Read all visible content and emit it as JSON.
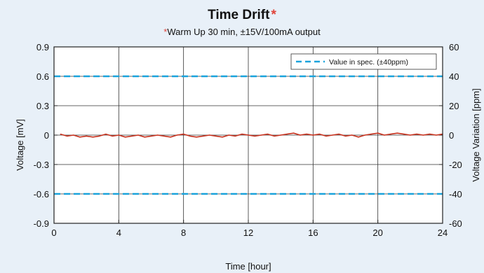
{
  "chart_data": {
    "type": "line",
    "title": "Time Drift",
    "title_mark": "*",
    "subtitle_mark": "*",
    "subtitle": "Warm Up 30 min, ±15V/100mA output",
    "xlabel": "Time [hour]",
    "ylabel": "Voltage [mV]",
    "y2label": "Voltage Variation [ppm]",
    "xlim": [
      0,
      24
    ],
    "ylim": [
      -0.9,
      0.9
    ],
    "y2lim": [
      -60,
      60
    ],
    "x_ticks": [
      "0",
      "4",
      "8",
      "12",
      "16",
      "20",
      "24"
    ],
    "y_ticks": [
      "0.9",
      "0.6",
      "0.3",
      "0",
      "-0.3",
      "-0.6",
      "-0.9"
    ],
    "y2_ticks": [
      "60",
      "40",
      "20",
      "0",
      "-20",
      "-40",
      "-60"
    ],
    "grid": true,
    "legend_position": "top-right",
    "series": [
      {
        "name": "Value in spec. (±40ppm)",
        "style": "dashed",
        "color": "#1aa3dc",
        "segments": [
          {
            "x": [
              0,
              24
            ],
            "y": [
              0.6,
              0.6
            ]
          },
          {
            "x": [
              0,
              24
            ],
            "y": [
              -0.6,
              -0.6
            ]
          }
        ]
      },
      {
        "style": "solid",
        "color": "#c8321e",
        "x": [
          0.4,
          0.8,
          1.2,
          1.6,
          2.0,
          2.4,
          2.8,
          3.2,
          3.6,
          4.0,
          4.4,
          4.8,
          5.2,
          5.6,
          6.0,
          6.4,
          6.8,
          7.2,
          7.6,
          8.0,
          8.4,
          8.8,
          9.2,
          9.6,
          10.0,
          10.4,
          10.8,
          11.2,
          11.6,
          12.0,
          12.4,
          12.8,
          13.2,
          13.6,
          14.0,
          14.4,
          14.8,
          15.2,
          15.6,
          16.0,
          16.4,
          16.8,
          17.2,
          17.6,
          18.0,
          18.4,
          18.8,
          19.2,
          19.6,
          20.0,
          20.4,
          20.8,
          21.2,
          21.6,
          22.0,
          22.4,
          22.8,
          23.2,
          23.6,
          24.0
        ],
        "y": [
          0.01,
          -0.01,
          0.0,
          -0.02,
          -0.01,
          -0.02,
          -0.01,
          0.01,
          -0.01,
          0.0,
          -0.02,
          -0.01,
          0.0,
          -0.02,
          -0.01,
          0.0,
          -0.01,
          -0.02,
          0.0,
          0.01,
          -0.01,
          -0.02,
          -0.01,
          0.0,
          -0.01,
          -0.02,
          0.0,
          -0.01,
          0.01,
          0.0,
          -0.01,
          0.0,
          0.01,
          -0.01,
          0.0,
          0.01,
          0.02,
          0.0,
          0.01,
          0.0,
          0.01,
          -0.01,
          0.0,
          0.01,
          -0.01,
          0.0,
          -0.02,
          0.0,
          0.01,
          0.02,
          0.0,
          0.01,
          0.02,
          0.01,
          0.0,
          0.01,
          0.0,
          0.01,
          0.0,
          0.01
        ]
      }
    ]
  }
}
